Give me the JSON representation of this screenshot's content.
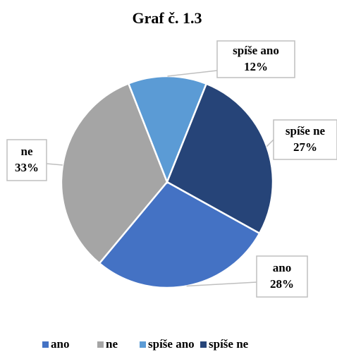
{
  "chart_data": {
    "type": "pie",
    "title": "Graf č. 1.3",
    "categories": [
      "ano",
      "ne",
      "spíše ano",
      "spíše ne"
    ],
    "values": [
      28,
      33,
      12,
      27
    ],
    "value_labels": [
      "28%",
      "33%",
      "12%",
      "27%"
    ],
    "colors": [
      "#4472c4",
      "#a5a5a5",
      "#5b9bd5",
      "#264478"
    ],
    "legend": "bottom"
  }
}
